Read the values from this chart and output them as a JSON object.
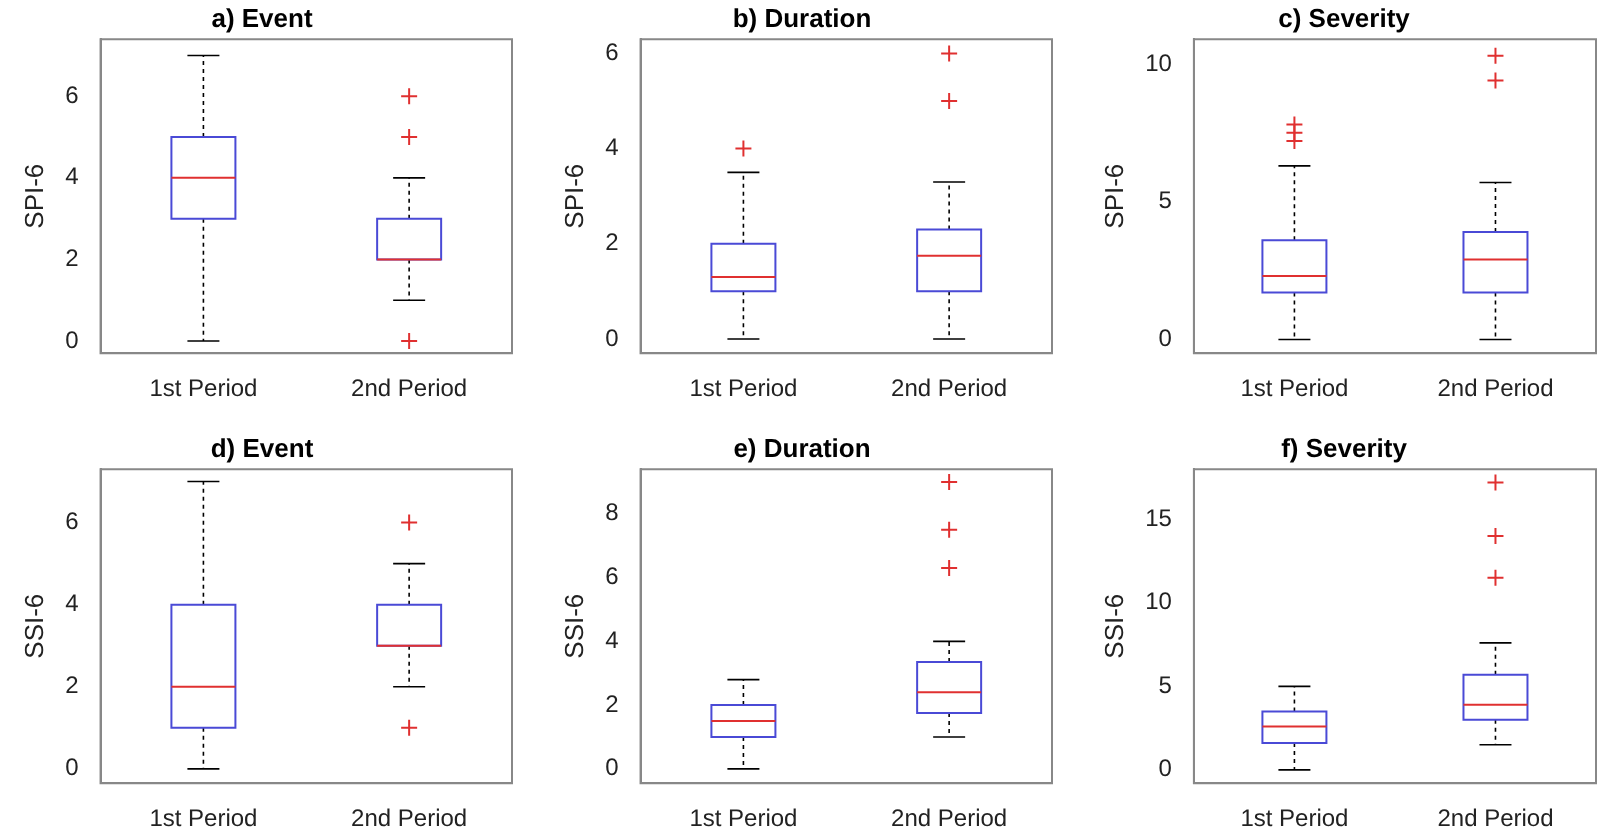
{
  "chart_data": [
    {
      "type": "box",
      "title": "a) Event",
      "ylabel": "SPI-6",
      "categories": [
        "1st Period",
        "2nd Period"
      ],
      "ylim": [
        -0.3,
        7.4
      ],
      "yticks": [
        0,
        2,
        4,
        6
      ],
      "grid": false,
      "legend": false,
      "series": [
        {
          "color": "#4a4ad6",
          "boxes": [
            {
              "low": 0,
              "q1": 3,
              "median": 4,
              "q3": 5,
              "high": 7
            },
            {
              "low": 1,
              "q1": 2,
              "median": 2,
              "q3": 3,
              "high": 4,
              "outliers": [
                6,
                5,
                0
              ]
            }
          ]
        }
      ]
    },
    {
      "type": "box",
      "title": "b) Duration",
      "ylabel": "SPI-6",
      "categories": [
        "1st Period",
        "2nd Period"
      ],
      "ylim": [
        -0.3,
        6.3
      ],
      "yticks": [
        0,
        2,
        4,
        6
      ],
      "grid": false,
      "legend": false,
      "series": [
        {
          "color": "#4a4ad6",
          "boxes": [
            {
              "low": 0,
              "q1": 1,
              "median": 1.3,
              "q3": 2,
              "high": 3.5,
              "outliers": [
                4
              ]
            },
            {
              "low": 0,
              "q1": 1,
              "median": 1.75,
              "q3": 2.3,
              "high": 3.3,
              "outliers": [
                5,
                6
              ]
            }
          ]
        }
      ]
    },
    {
      "type": "box",
      "title": "c) Severity",
      "ylabel": "SPI-6",
      "categories": [
        "1st Period",
        "2nd Period"
      ],
      "ylim": [
        -0.5,
        10.9
      ],
      "yticks": [
        0,
        5,
        10
      ],
      "grid": false,
      "legend": false,
      "series": [
        {
          "color": "#4a4ad6",
          "boxes": [
            {
              "low": 0,
              "q1": 1.7,
              "median": 2.3,
              "q3": 3.6,
              "high": 6.3,
              "outliers": [
                7.2,
                7.5,
                7.8
              ]
            },
            {
              "low": 0,
              "q1": 1.7,
              "median": 2.9,
              "q3": 3.9,
              "high": 5.7,
              "outliers": [
                9.4,
                10.3
              ]
            }
          ]
        }
      ]
    },
    {
      "type": "box",
      "title": "d) Event",
      "ylabel": "SSI-6",
      "categories": [
        "1st Period",
        "2nd Period"
      ],
      "ylim": [
        -0.35,
        7.3
      ],
      "yticks": [
        0,
        2,
        4,
        6
      ],
      "grid": false,
      "legend": false,
      "series": [
        {
          "color": "#4a4ad6",
          "boxes": [
            {
              "low": 0,
              "q1": 1,
              "median": 2,
              "q3": 4,
              "high": 7
            },
            {
              "low": 2,
              "q1": 3,
              "median": 3,
              "q3": 4,
              "high": 5,
              "outliers": [
                6,
                1
              ]
            }
          ]
        }
      ]
    },
    {
      "type": "box",
      "title": "e) Duration",
      "ylabel": "SSI-6",
      "categories": [
        "1st Period",
        "2nd Period"
      ],
      "ylim": [
        -0.45,
        9.4
      ],
      "yticks": [
        0,
        2,
        4,
        6,
        8
      ],
      "grid": false,
      "legend": false,
      "series": [
        {
          "color": "#4a4ad6",
          "boxes": [
            {
              "low": 0,
              "q1": 1,
              "median": 1.5,
              "q3": 2,
              "high": 2.8
            },
            {
              "low": 1,
              "q1": 1.75,
              "median": 2.4,
              "q3": 3.35,
              "high": 4,
              "outliers": [
                6.3,
                7.5,
                9
              ]
            }
          ]
        }
      ]
    },
    {
      "type": "box",
      "title": "f) Severity",
      "ylabel": "SSI-6",
      "categories": [
        "1st Period",
        "2nd Period"
      ],
      "ylim": [
        -0.8,
        18
      ],
      "yticks": [
        0,
        5,
        10,
        15
      ],
      "grid": false,
      "legend": false,
      "series": [
        {
          "color": "#4a4ad6",
          "boxes": [
            {
              "low": 0,
              "q1": 1.6,
              "median": 2.6,
              "q3": 3.5,
              "high": 5
            },
            {
              "low": 1.5,
              "q1": 3,
              "median": 3.9,
              "q3": 5.7,
              "high": 7.6,
              "outliers": [
                11.5,
                14,
                17.2
              ]
            }
          ]
        }
      ]
    }
  ]
}
